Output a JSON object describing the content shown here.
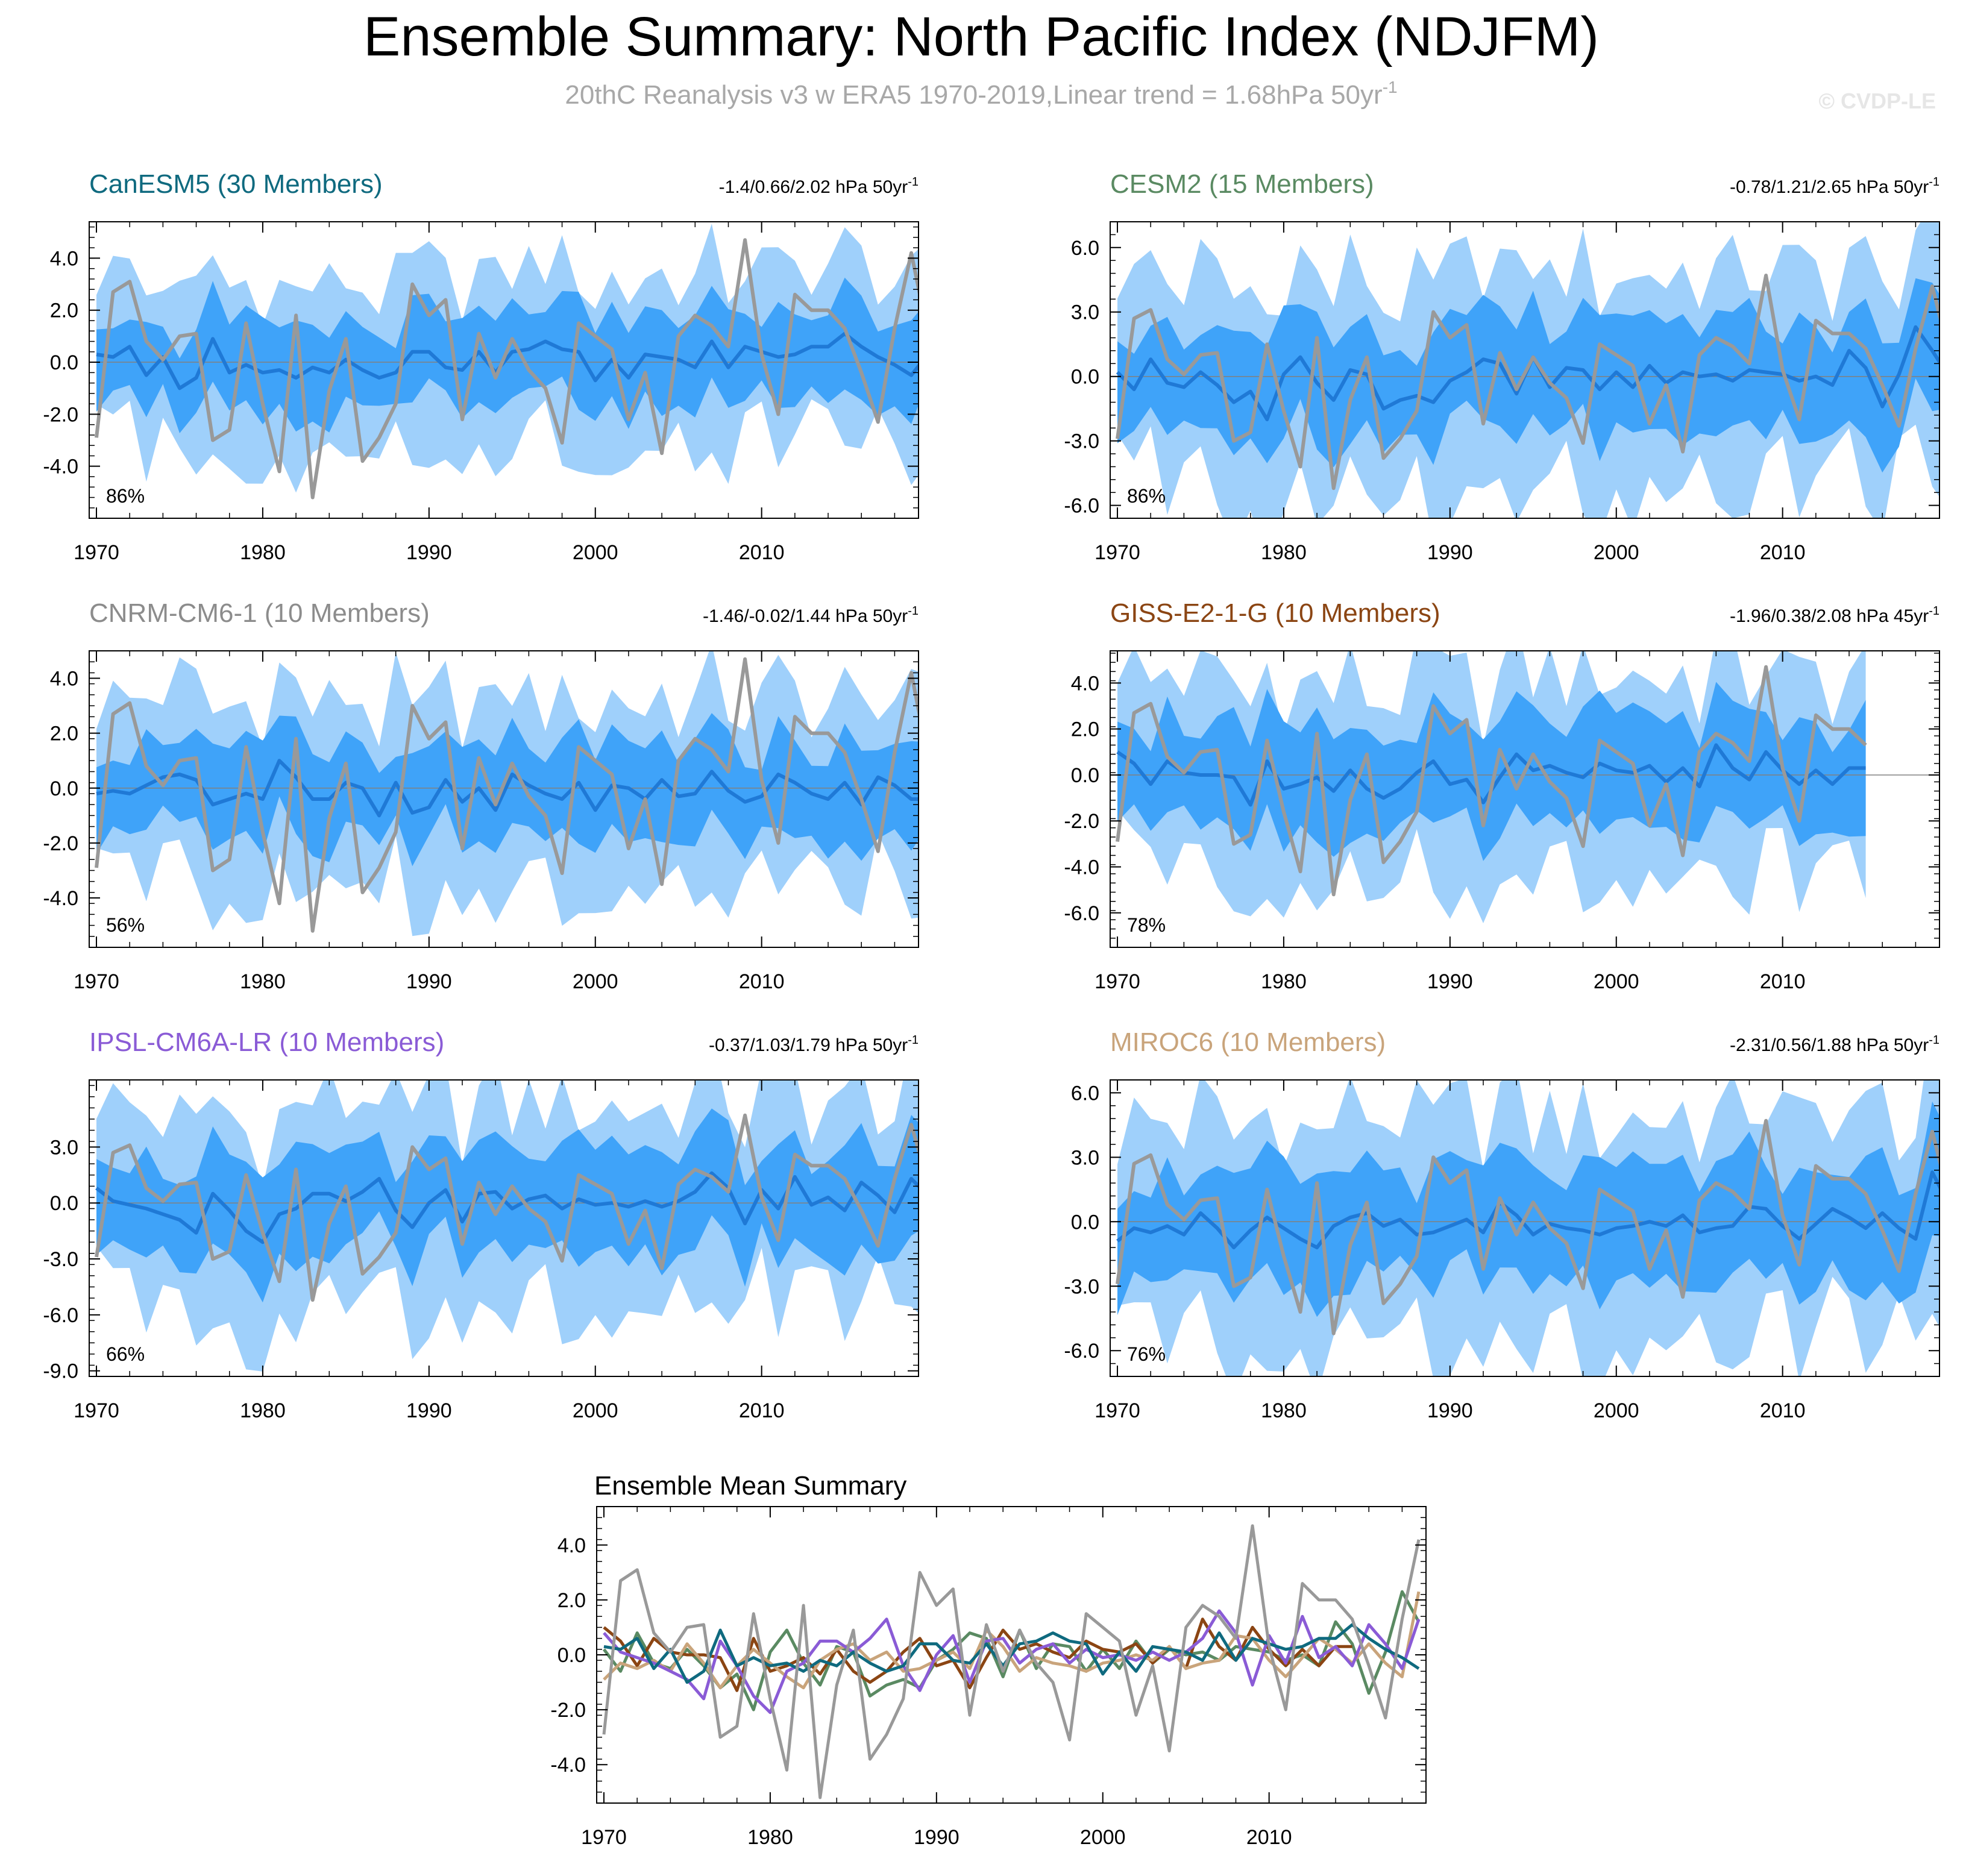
{
  "header": {
    "title": "Ensemble Summary: North Pacific Index (NDJFM)",
    "subtitle_main": "20thC Reanalysis v3 w ERA5 1970-2019,Linear trend = 1.68hPa 50yr",
    "subtitle_sup": "-1",
    "watermark": "© CVDP-LE"
  },
  "colors": {
    "outer_band": "#9fd0fb",
    "inner_band": "#3fa3f9",
    "ens_mean": "#1f79d6",
    "obs": "#999999",
    "zero": "#808080"
  },
  "obs_series": [
    -2.9,
    2.7,
    3.1,
    0.8,
    0.1,
    1.0,
    1.1,
    -3.0,
    -2.6,
    1.5,
    -1.6,
    -4.2,
    1.8,
    -5.2,
    -1.1,
    0.9,
    -3.8,
    -2.9,
    -1.6,
    3.0,
    1.8,
    2.4,
    -2.2,
    1.1,
    -0.6,
    0.9,
    -0.3,
    -1.0,
    -3.1,
    1.5,
    1.0,
    0.5,
    -2.2,
    -0.4,
    -3.5,
    1.0,
    1.8,
    1.4,
    0.6,
    4.7,
    0.3,
    -2.0,
    2.6,
    2.0,
    2.0,
    1.3,
    -0.4,
    -2.3,
    1.3,
    4.2,
    1.1
  ],
  "chart_data": [
    {
      "type": "line",
      "title": "CanESM5 (30 Members)",
      "title_color": "#0f6a7f",
      "trend_label": "-1.4/0.66/2.02 hPa 50yr",
      "trend_sup": "-1",
      "percent_label": "86%",
      "x_start": 1970,
      "x_end": 2019,
      "xticks": [
        "1970",
        "1980",
        "1990",
        "2000",
        "2010"
      ],
      "ylim": [
        -6.0,
        5.4
      ],
      "yticks": [
        "4.0",
        "2.0",
        "0.0",
        "-2.0",
        "-4.0"
      ],
      "ytick_values": [
        4.0,
        2.0,
        0.0,
        -2.0,
        -4.0
      ],
      "ens_mean": [
        0.3,
        0.2,
        0.6,
        -0.5,
        0.2,
        -1.0,
        -0.6,
        0.9,
        -0.4,
        -0.1,
        -0.4,
        -0.3,
        -0.6,
        -0.2,
        -0.4,
        0.1,
        -0.3,
        -0.6,
        -0.4,
        0.4,
        0.4,
        -0.2,
        -0.3,
        0.4,
        -0.4,
        0.4,
        0.5,
        0.8,
        0.5,
        0.4,
        -0.7,
        0.1,
        -0.6,
        0.3,
        0.2,
        0.1,
        -0.2,
        0.8,
        -0.2,
        0.6,
        0.4,
        0.2,
        0.3,
        0.6,
        0.6,
        1.1,
        0.6,
        0.2,
        -0.1,
        -0.5,
        0.3
      ],
      "inner_width": 1.6,
      "outer_width": 3.2
    },
    {
      "type": "line",
      "title": "CESM2 (15 Members)",
      "title_color": "#5a8a62",
      "trend_label": "-0.78/1.21/2.65 hPa 50yr",
      "trend_sup": "-1",
      "percent_label": "86%",
      "x_start": 1970,
      "x_end": 2019,
      "xticks": [
        "1970",
        "1980",
        "1990",
        "2000",
        "2010"
      ],
      "ylim": [
        -6.6,
        7.2
      ],
      "yticks": [
        "6.0",
        "3.0",
        "0.0",
        "-3.0",
        "-6.0"
      ],
      "ytick_values": [
        6.0,
        3.0,
        0.0,
        -3.0,
        -6.0
      ],
      "ens_mean": [
        0.2,
        -0.6,
        0.8,
        -0.3,
        -0.5,
        0.2,
        -0.4,
        -1.2,
        -0.7,
        -2.0,
        0.1,
        0.9,
        -0.3,
        -1.1,
        0.3,
        0.1,
        -1.5,
        -1.1,
        -0.9,
        -1.2,
        -0.2,
        0.2,
        0.8,
        0.6,
        -0.8,
        0.9,
        -0.5,
        0.4,
        0.3,
        -0.6,
        0.2,
        -0.5,
        0.5,
        -0.3,
        0.2,
        0.0,
        0.1,
        -0.2,
        0.3,
        0.2,
        0.1,
        -0.2,
        0.0,
        -0.4,
        1.2,
        0.4,
        -1.4,
        0.1,
        2.3,
        1.2,
        0.0
      ],
      "inner_width": 2.4,
      "outer_width": 4.8
    },
    {
      "type": "line",
      "title": "CNRM-CM6-1 (10 Members)",
      "title_color": "#8c8c8c",
      "trend_label": "-1.46/-0.02/1.44 hPa 50yr",
      "trend_sup": "-1",
      "percent_label": "56%",
      "x_start": 1970,
      "x_end": 2019,
      "xticks": [
        "1970",
        "1980",
        "1990",
        "2000",
        "2010"
      ],
      "ylim": [
        -5.8,
        5.0
      ],
      "yticks": [
        "4.0",
        "2.0",
        "0.0",
        "-2.0",
        "-4.0"
      ],
      "ytick_values": [
        4.0,
        2.0,
        0.0,
        -2.0,
        -4.0
      ],
      "ens_mean": [
        -0.2,
        -0.1,
        -0.2,
        0.1,
        0.4,
        0.5,
        0.3,
        -0.6,
        -0.4,
        -0.2,
        -0.4,
        1.0,
        0.4,
        -0.4,
        -0.4,
        0.2,
        0.0,
        -1.0,
        0.2,
        -0.9,
        -0.7,
        0.3,
        -0.5,
        0.0,
        -0.8,
        0.5,
        0.1,
        -0.2,
        -0.4,
        0.2,
        -0.8,
        0.1,
        0.0,
        -0.4,
        0.3,
        -0.3,
        -0.2,
        0.6,
        -0.1,
        -0.5,
        -0.3,
        0.5,
        0.2,
        -0.2,
        -0.4,
        0.2,
        -0.6,
        0.4,
        0.1,
        -0.4,
        -0.4
      ],
      "inner_width": 1.6,
      "outer_width": 3.3
    },
    {
      "type": "line",
      "title": "GISS-E2-1-G (10 Members)",
      "title_color": "#8b4513",
      "trend_label": "-1.96/0.38/2.08 hPa 45yr",
      "trend_sup": "-1",
      "percent_label": "78%",
      "x_start": 1970,
      "x_end": 2014,
      "xticks": [
        "1970",
        "1980",
        "1990",
        "2000",
        "2010"
      ],
      "ylim": [
        -7.5,
        5.4
      ],
      "yticks": [
        "4.0",
        "2.0",
        "0.0",
        "-2.0",
        "-4.0",
        "-6.0"
      ],
      "ytick_values": [
        4.0,
        2.0,
        0.0,
        -2.0,
        -4.0,
        -6.0
      ],
      "ens_mean": [
        1.0,
        0.5,
        -0.4,
        0.6,
        0.1,
        0.0,
        0.0,
        -0.1,
        -1.3,
        0.6,
        -0.6,
        -0.4,
        -0.1,
        -0.7,
        0.2,
        -0.6,
        -1.0,
        -0.6,
        0.1,
        0.6,
        -0.4,
        -0.2,
        -1.2,
        -0.1,
        0.9,
        0.2,
        0.4,
        0.1,
        -0.1,
        0.5,
        0.2,
        0.1,
        0.4,
        -0.3,
        0.3,
        -0.5,
        1.3,
        0.3,
        -0.2,
        1.0,
        0.2,
        -0.4,
        0.2,
        -0.4,
        0.3,
        0.3
      ],
      "inner_width": 2.2,
      "outer_width": 4.2
    },
    {
      "type": "line",
      "title": "IPSL-CM6A-LR (10 Members)",
      "title_color": "#8a5bd6",
      "trend_label": "-0.37/1.03/1.79 hPa 50yr",
      "trend_sup": "-1",
      "percent_label": "66%",
      "x_start": 1970,
      "x_end": 2019,
      "xticks": [
        "1970",
        "1980",
        "1990",
        "2000",
        "2010"
      ],
      "ylim": [
        -9.3,
        6.6
      ],
      "yticks": [
        "3.0",
        "0.0",
        "-3.0",
        "-6.0",
        "-9.0"
      ],
      "ytick_values": [
        3.0,
        0.0,
        -3.0,
        -6.0,
        -9.0
      ],
      "ens_mean": [
        0.8,
        0.1,
        -0.1,
        -0.3,
        -0.6,
        -0.9,
        -1.6,
        0.5,
        -0.4,
        -1.5,
        -2.1,
        -0.6,
        -0.3,
        0.5,
        0.5,
        0.1,
        0.6,
        1.3,
        -0.4,
        -1.3,
        0.0,
        0.7,
        -1.0,
        0.5,
        0.6,
        -0.3,
        0.2,
        0.4,
        -0.3,
        0.2,
        -0.1,
        0.0,
        -0.2,
        0.1,
        -0.2,
        0.1,
        0.6,
        1.6,
        0.8,
        -1.1,
        0.7,
        -0.3,
        1.4,
        -0.1,
        0.3,
        -0.4,
        1.1,
        0.4,
        -0.5,
        1.3,
        0.4
      ],
      "inner_width": 2.6,
      "outer_width": 5.2
    },
    {
      "type": "line",
      "title": "MIROC6 (10 Members)",
      "title_color": "#c9a47b",
      "trend_label": "-2.31/0.56/1.88 hPa 50yr",
      "trend_sup": "-1",
      "percent_label": "76%",
      "x_start": 1970,
      "x_end": 2019,
      "xticks": [
        "1970",
        "1980",
        "1990",
        "2000",
        "2010"
      ],
      "ylim": [
        -7.2,
        6.6
      ],
      "yticks": [
        "6.0",
        "3.0",
        "0.0",
        "-3.0",
        "-6.0"
      ],
      "ytick_values": [
        6.0,
        3.0,
        0.0,
        -3.0,
        -6.0
      ],
      "ens_mean": [
        -0.9,
        -0.3,
        -0.5,
        -0.2,
        -0.6,
        0.4,
        -0.3,
        -1.2,
        -0.4,
        0.2,
        -0.3,
        -0.8,
        -1.2,
        -0.2,
        0.2,
        0.4,
        -0.2,
        0.1,
        -0.6,
        -0.5,
        -0.2,
        0.1,
        -0.5,
        0.9,
        0.3,
        -0.6,
        -0.1,
        -0.3,
        -0.4,
        -0.6,
        -0.3,
        -0.2,
        0.0,
        -0.2,
        0.3,
        -0.5,
        -0.3,
        -0.2,
        0.7,
        0.6,
        -0.2,
        -0.8,
        -0.1,
        0.6,
        0.2,
        -0.3,
        0.4,
        -0.3,
        -0.8,
        2.3,
        0.8
      ],
      "inner_width": 2.5,
      "outer_width": 5.0
    },
    {
      "type": "line",
      "title": "Ensemble Mean Summary",
      "title_color": "#000000",
      "x_start": 1970,
      "x_end": 2019,
      "xticks": [
        "1970",
        "1980",
        "1990",
        "2000",
        "2010"
      ],
      "ylim": [
        -5.4,
        5.4
      ],
      "yticks": [
        "4.0",
        "2.0",
        "0.0",
        "-2.0",
        "-4.0"
      ],
      "ytick_values": [
        4.0,
        2.0,
        0.0,
        -2.0,
        -4.0
      ],
      "summary_series": [
        0,
        1,
        2,
        3,
        4,
        5
      ],
      "summary_colors": [
        "#0f6a7f",
        "#5a8a62",
        "#999999",
        "#8b4513",
        "#8a5bd6",
        "#c9a47b"
      ]
    }
  ]
}
